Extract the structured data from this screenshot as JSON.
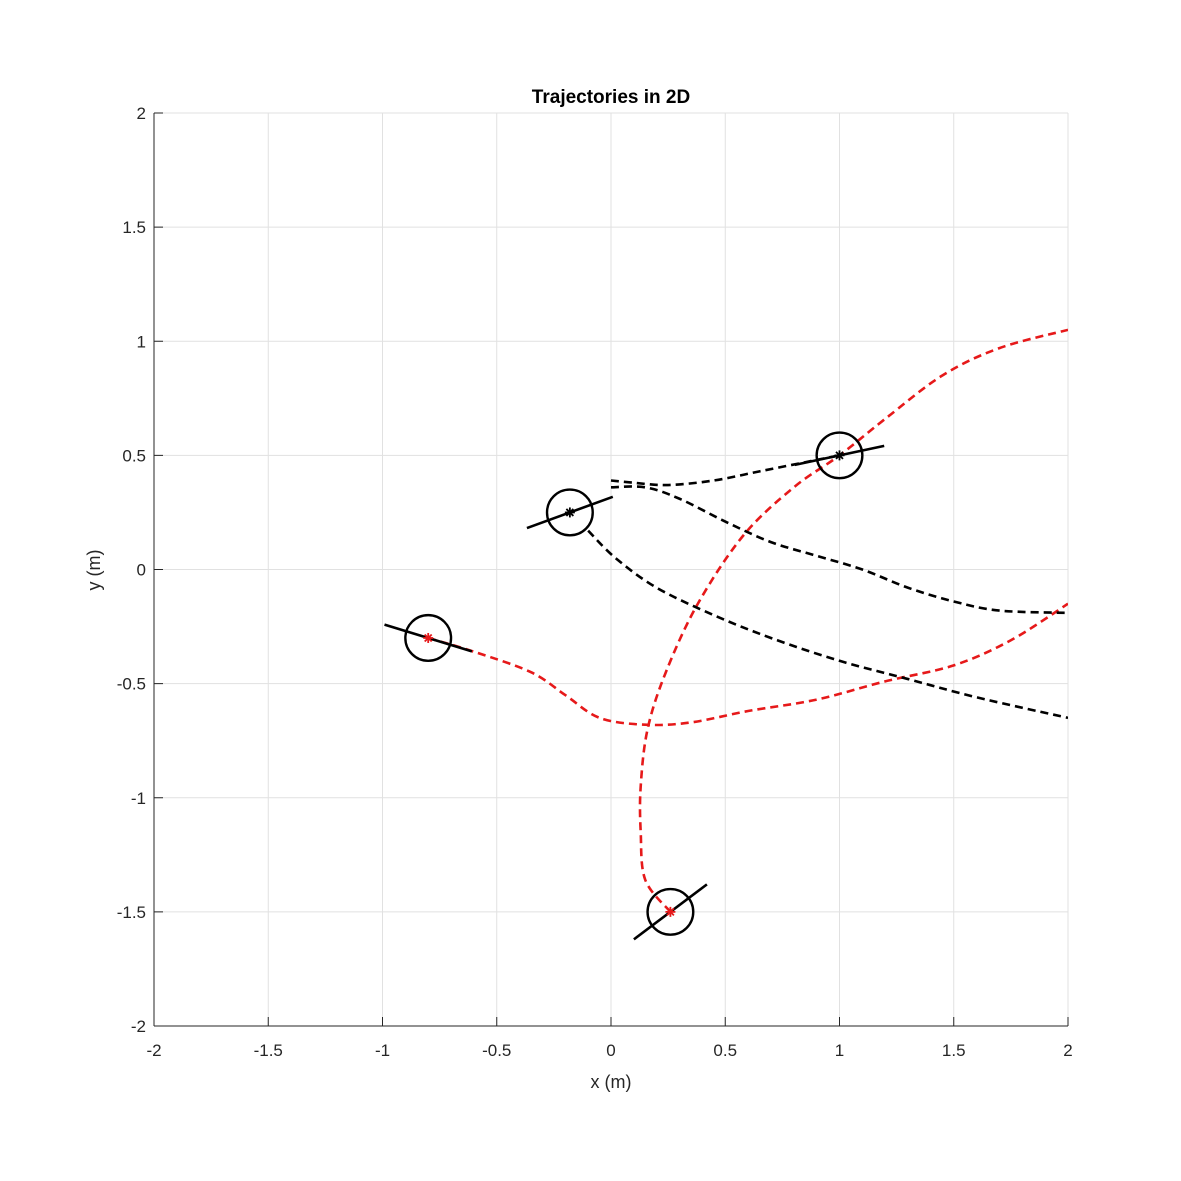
{
  "chart_data": {
    "type": "line",
    "title": "Trajectories in 2D",
    "xlabel": "x (m)",
    "ylabel": "y (m)",
    "xlim": [
      -2,
      2
    ],
    "ylim": [
      -2,
      2
    ],
    "xticks": [
      -2,
      -1.5,
      -1,
      -0.5,
      0,
      0.5,
      1,
      1.5,
      2
    ],
    "yticks": [
      -2,
      -1.5,
      -1,
      -0.5,
      0,
      0.5,
      1,
      1.5,
      2
    ],
    "xtick_labels": [
      "-2",
      "-1.5",
      "-1",
      "-0.5",
      "0",
      "0.5",
      "1",
      "1.5",
      "2"
    ],
    "ytick_labels": [
      "-2",
      "-1.5",
      "-1",
      "-0.5",
      "0",
      "0.5",
      "1",
      "1.5",
      "2"
    ],
    "grid": true,
    "colors": {
      "red": "#e6191a",
      "black": "#000000",
      "grid": "#e1e1e1",
      "axis": "#262626"
    },
    "series": [
      {
        "color": "red",
        "style": "dashed",
        "points": [
          [
            -0.8,
            -0.3
          ],
          [
            -0.6,
            -0.36
          ],
          [
            -0.35,
            -0.45
          ],
          [
            -0.2,
            -0.55
          ],
          [
            -0.05,
            -0.65
          ],
          [
            0.15,
            -0.68
          ],
          [
            0.35,
            -0.67
          ],
          [
            0.6,
            -0.62
          ],
          [
            0.9,
            -0.57
          ],
          [
            1.2,
            -0.49
          ],
          [
            1.5,
            -0.42
          ],
          [
            1.75,
            -0.31
          ],
          [
            2.0,
            -0.15
          ]
        ]
      },
      {
        "color": "red",
        "style": "dashed",
        "points": [
          [
            0.26,
            -1.5
          ],
          [
            0.15,
            -1.36
          ],
          [
            0.13,
            -1.15
          ],
          [
            0.13,
            -0.95
          ],
          [
            0.16,
            -0.7
          ],
          [
            0.24,
            -0.45
          ],
          [
            0.38,
            -0.15
          ],
          [
            0.58,
            0.15
          ],
          [
            0.8,
            0.36
          ],
          [
            1.0,
            0.5
          ],
          [
            1.2,
            0.66
          ],
          [
            1.45,
            0.85
          ],
          [
            1.7,
            0.97
          ],
          [
            2.0,
            1.05
          ]
        ]
      },
      {
        "color": "black",
        "style": "dashed",
        "points": [
          [
            -0.1,
            0.17
          ],
          [
            0.02,
            0.05
          ],
          [
            0.2,
            -0.08
          ],
          [
            0.45,
            -0.2
          ],
          [
            0.7,
            -0.3
          ],
          [
            1.0,
            -0.4
          ],
          [
            1.3,
            -0.48
          ],
          [
            1.6,
            -0.56
          ],
          [
            2.0,
            -0.65
          ]
        ]
      },
      {
        "color": "black",
        "style": "dashed",
        "points": [
          [
            0.0,
            0.36
          ],
          [
            0.15,
            0.36
          ],
          [
            0.3,
            0.31
          ],
          [
            0.5,
            0.21
          ],
          [
            0.7,
            0.12
          ],
          [
            0.9,
            0.06
          ],
          [
            1.1,
            0.0
          ],
          [
            1.3,
            -0.08
          ],
          [
            1.5,
            -0.14
          ],
          [
            1.7,
            -0.18
          ],
          [
            2.0,
            -0.19
          ]
        ]
      },
      {
        "color": "black",
        "style": "dashed",
        "points": [
          [
            0.0,
            0.39
          ],
          [
            0.1,
            0.38
          ],
          [
            0.25,
            0.37
          ],
          [
            0.45,
            0.39
          ],
          [
            0.65,
            0.43
          ],
          [
            0.85,
            0.47
          ],
          [
            1.0,
            0.5
          ]
        ]
      }
    ],
    "agents": [
      {
        "x": -0.8,
        "y": -0.3,
        "heading_deg": -17,
        "marker_color": "red"
      },
      {
        "x": -0.18,
        "y": 0.25,
        "heading_deg": 20,
        "marker_color": "black"
      },
      {
        "x": 1.0,
        "y": 0.5,
        "heading_deg": 12,
        "marker_color": "black"
      },
      {
        "x": 0.26,
        "y": -1.5,
        "heading_deg": 37,
        "marker_color": "red"
      }
    ],
    "agent_radius": 0.1,
    "heading_length": 0.2
  }
}
